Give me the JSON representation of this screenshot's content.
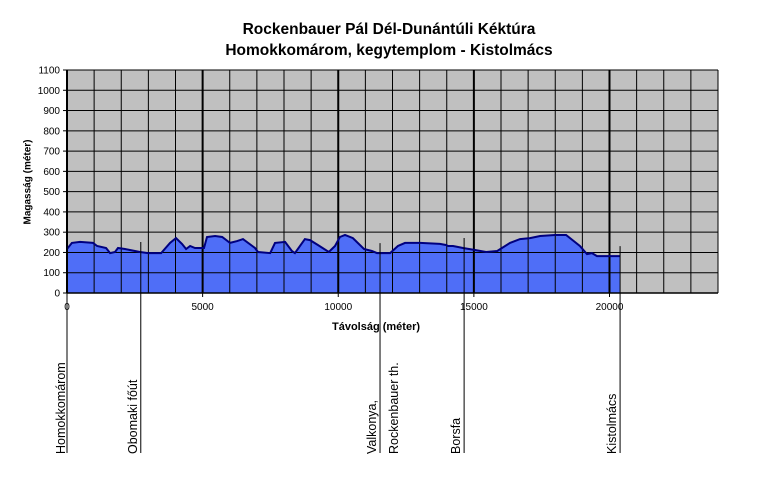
{
  "chart_data": {
    "type": "area",
    "title": "Rockenbauer Pál Dél-Dunántúli Kéktúra",
    "subtitle": "Homokkomárom, kegytemplom - Kistolmács",
    "xlabel": "Távolság (méter)",
    "ylabel": "Magasság (méter)",
    "xlim": [
      0,
      24000
    ],
    "ylim": [
      0,
      1100
    ],
    "x_ticks": [
      0,
      5000,
      10000,
      15000,
      20000
    ],
    "x_tick_labels": [
      "0",
      "5000",
      "10000",
      "15000",
      "20000"
    ],
    "y_ticks": [
      0,
      100,
      200,
      300,
      400,
      500,
      600,
      700,
      800,
      900,
      1000,
      1100
    ],
    "grid": true,
    "x_grid_step": 1000,
    "y_grid_step": 100,
    "series": [
      {
        "name": "Magasság",
        "color": "#4f6ef7",
        "line_color": "#000080",
        "x": [
          0,
          180,
          480,
          960,
          1110,
          1440,
          1590,
          1770,
          1880,
          2140,
          2320,
          2690,
          2990,
          3470,
          3800,
          4020,
          4240,
          4390,
          4540,
          4720,
          5050,
          5160,
          5460,
          5720,
          6010,
          6270,
          6490,
          6930,
          7040,
          7490,
          7670,
          8040,
          8290,
          8400,
          8770,
          8960,
          9250,
          9650,
          9880,
          10060,
          10250,
          10540,
          10950,
          11240,
          11430,
          11910,
          12200,
          12460,
          13020,
          13750,
          13970,
          14050,
          14230,
          14420,
          14600,
          15040,
          15450,
          15860,
          16330,
          16700,
          17070,
          17440,
          17990,
          18400,
          18910,
          19170,
          19350,
          19540,
          20390
        ],
        "values": [
          217,
          247,
          252,
          247,
          232,
          222,
          197,
          202,
          222,
          217,
          212,
          202,
          197,
          197,
          247,
          271,
          242,
          217,
          232,
          222,
          222,
          276,
          281,
          276,
          247,
          256,
          266,
          222,
          202,
          197,
          247,
          252,
          207,
          197,
          266,
          261,
          237,
          202,
          232,
          276,
          286,
          271,
          217,
          207,
          197,
          197,
          232,
          247,
          247,
          242,
          237,
          232,
          232,
          227,
          222,
          212,
          202,
          207,
          247,
          266,
          271,
          281,
          286,
          286,
          232,
          192,
          197,
          182,
          182
        ]
      }
    ],
    "markers": [
      {
        "label": "Homokkomárom",
        "x": 0
      },
      {
        "label": "Obomaki főút",
        "x": 2720
      },
      {
        "label": "Valkonya,",
        "x": 11540
      },
      {
        "label": "Rockenbauer th.",
        "x": 11540
      },
      {
        "label": "Borsfa",
        "x": 14640
      },
      {
        "label": "Kistolmács",
        "x": 20390
      }
    ]
  }
}
